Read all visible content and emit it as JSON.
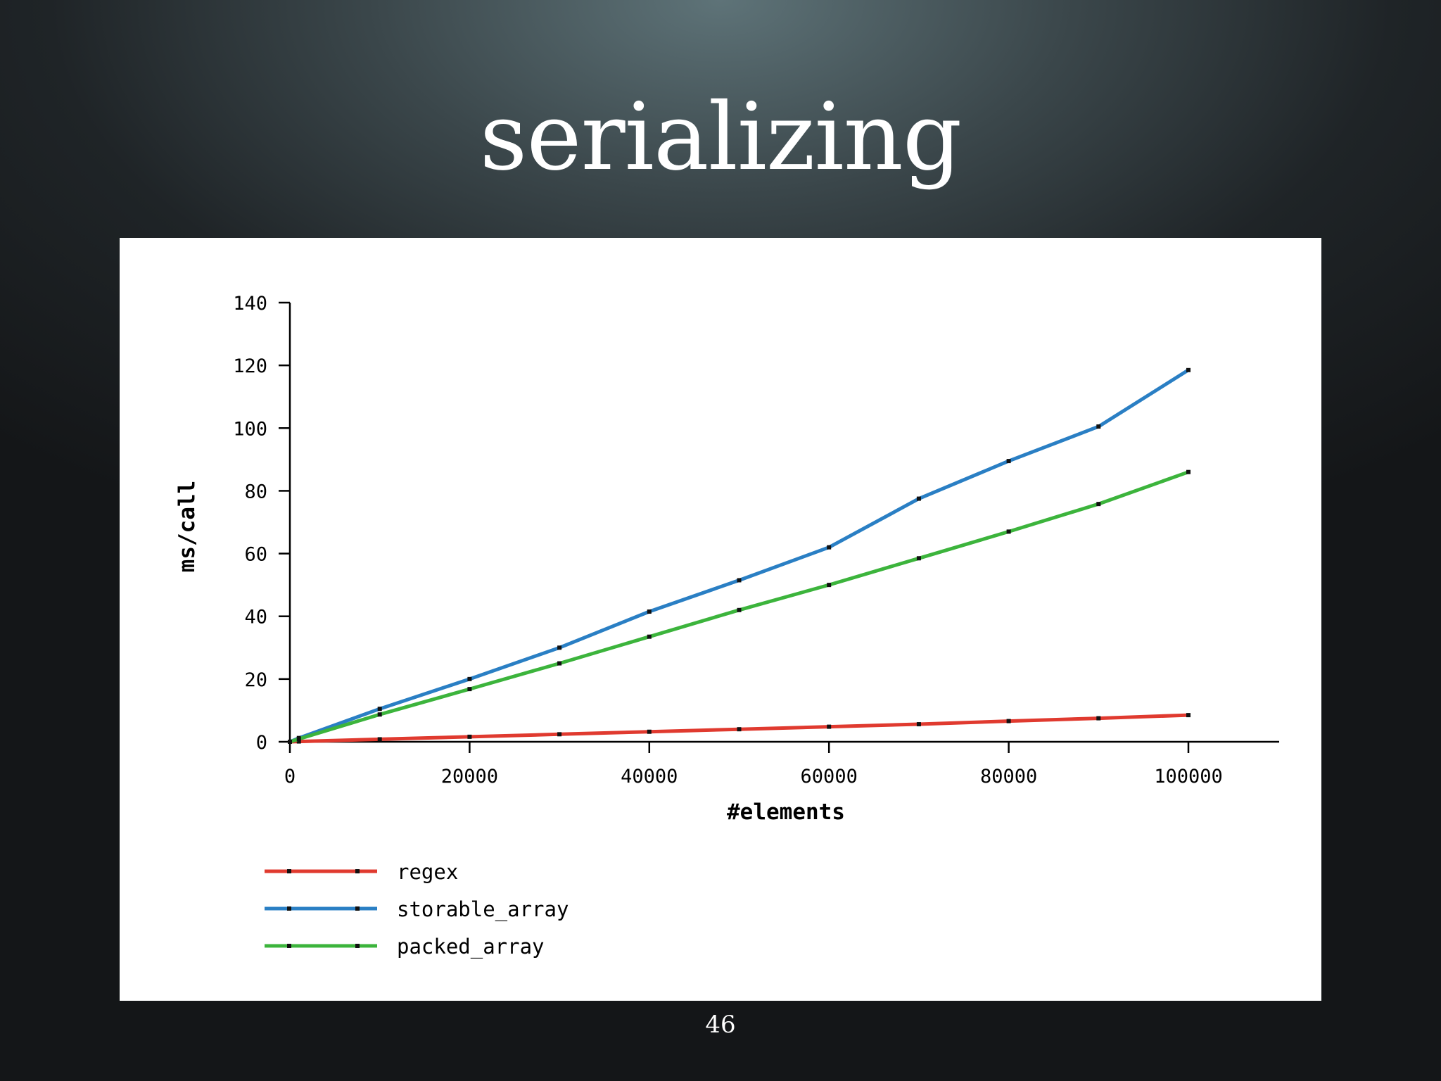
{
  "slide": {
    "title": "serializing",
    "page_number": "46",
    "background": "#2a3034"
  },
  "chart_data": {
    "type": "line",
    "title": "",
    "xlabel": "#elements",
    "ylabel": "ms/call",
    "xlim": [
      0,
      110000
    ],
    "ylim": [
      0,
      140
    ],
    "xticks": [
      "0",
      "20000",
      "40000",
      "60000",
      "80000",
      "100000"
    ],
    "yticks": [
      "0",
      "20",
      "40",
      "60",
      "80",
      "100",
      "120",
      "140"
    ],
    "grid": false,
    "legend": "bottom-left, below axis",
    "x": [
      0,
      1000,
      10000,
      20000,
      30000,
      40000,
      50000,
      60000,
      70000,
      80000,
      90000,
      100000
    ],
    "series": [
      {
        "name": "regex",
        "color": "#e03a2f",
        "values": [
          0,
          0.1,
          0.8,
          1.6,
          2.4,
          3.2,
          4.0,
          4.8,
          5.6,
          6.6,
          7.5,
          8.5
        ]
      },
      {
        "name": "storable_array",
        "color": "#2a7fc4",
        "values": [
          0,
          1.2,
          10.5,
          20,
          30,
          41.5,
          51.5,
          62,
          77.5,
          89.5,
          100.5,
          118.5
        ]
      },
      {
        "name": "packed_array",
        "color": "#3cb43c",
        "values": [
          0,
          0.9,
          8.7,
          16.8,
          25,
          33.5,
          42,
          50,
          58.5,
          67,
          75.8,
          86
        ]
      }
    ]
  }
}
